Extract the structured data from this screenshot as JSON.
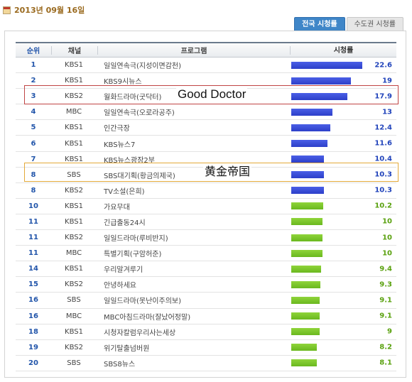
{
  "date": "2013년 09월 16일",
  "tabs": [
    {
      "label": "전국 시청률",
      "active": true
    },
    {
      "label": "수도권 시청률",
      "active": false
    }
  ],
  "columns": {
    "rank": "순위",
    "channel": "채널",
    "program": "프로그램",
    "rating": "시청률"
  },
  "max_rating": 22.6,
  "colors": {
    "blue_bar": "#3344d6",
    "green_bar": "#7cc52a",
    "good_doctor_box": "#c04545",
    "golden_empire_box": "#e3a93a"
  },
  "rows": [
    {
      "rank": "1",
      "channel": "KBS1",
      "program": "일일연속극(지성이면감천)",
      "rating": "22.6",
      "value": 22.6,
      "color": "blue"
    },
    {
      "rank": "2",
      "channel": "KBS1",
      "program": "KBS9시뉴스",
      "rating": "19",
      "value": 19,
      "color": "blue"
    },
    {
      "rank": "3",
      "channel": "KBS2",
      "program": "월화드라마(굿닥터)",
      "rating": "17.9",
      "value": 17.9,
      "color": "blue"
    },
    {
      "rank": "4",
      "channel": "MBC",
      "program": "일일연속극(오로라공주)",
      "rating": "13",
      "value": 13,
      "color": "blue"
    },
    {
      "rank": "5",
      "channel": "KBS1",
      "program": "인간극장",
      "rating": "12.4",
      "value": 12.4,
      "color": "blue"
    },
    {
      "rank": "6",
      "channel": "KBS1",
      "program": "KBS뉴스7",
      "rating": "11.6",
      "value": 11.6,
      "color": "blue"
    },
    {
      "rank": "7",
      "channel": "KBS1",
      "program": "KBS뉴스광장2부",
      "rating": "10.4",
      "value": 10.4,
      "color": "blue"
    },
    {
      "rank": "8",
      "channel": "SBS",
      "program": "SBS대기획(황금의제국)",
      "rating": "10.3",
      "value": 10.3,
      "color": "blue"
    },
    {
      "rank": "8",
      "channel": "KBS2",
      "program": "TV소설(은희)",
      "rating": "10.3",
      "value": 10.3,
      "color": "blue"
    },
    {
      "rank": "10",
      "channel": "KBS1",
      "program": "가요무대",
      "rating": "10.2",
      "value": 10.2,
      "color": "green"
    },
    {
      "rank": "11",
      "channel": "KBS1",
      "program": "긴급출동24시",
      "rating": "10",
      "value": 10,
      "color": "green"
    },
    {
      "rank": "11",
      "channel": "KBS2",
      "program": "일일드라마(루비반지)",
      "rating": "10",
      "value": 10,
      "color": "green"
    },
    {
      "rank": "11",
      "channel": "MBC",
      "program": "특별기획(구암허준)",
      "rating": "10",
      "value": 10,
      "color": "green"
    },
    {
      "rank": "14",
      "channel": "KBS1",
      "program": "우리말겨루기",
      "rating": "9.4",
      "value": 9.4,
      "color": "green"
    },
    {
      "rank": "15",
      "channel": "KBS2",
      "program": "안녕하세요",
      "rating": "9.3",
      "value": 9.3,
      "color": "green"
    },
    {
      "rank": "16",
      "channel": "SBS",
      "program": "일일드라마(못난이주의보)",
      "rating": "9.1",
      "value": 9.1,
      "color": "green"
    },
    {
      "rank": "16",
      "channel": "MBC",
      "program": "MBC아침드라마(잘났어정말)",
      "rating": "9.1",
      "value": 9.1,
      "color": "green"
    },
    {
      "rank": "18",
      "channel": "KBS1",
      "program": "시청자칼럼우리사는세상",
      "rating": "9",
      "value": 9,
      "color": "green"
    },
    {
      "rank": "19",
      "channel": "KBS2",
      "program": "위기탈출넘버원",
      "rating": "8.2",
      "value": 8.2,
      "color": "green"
    },
    {
      "rank": "20",
      "channel": "SBS",
      "program": "SBS8뉴스",
      "rating": "8.1",
      "value": 8.1,
      "color": "green"
    }
  ],
  "annotations": {
    "good_doctor": "Good Doctor",
    "golden_empire": "黄金帝国"
  }
}
